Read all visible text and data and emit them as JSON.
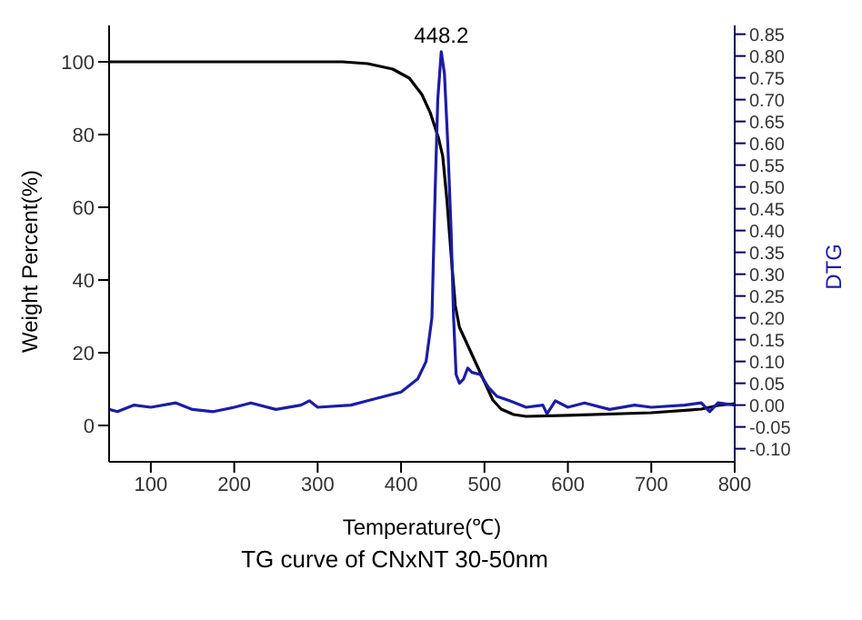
{
  "chart_data": {
    "type": "line",
    "title": "TG curve of CNxNT 30-50nm",
    "xlabel": "Temperature(℃)",
    "ylabel": "Weight Percent(%)",
    "y2label": "DTG",
    "xlim": [
      50,
      800
    ],
    "xticks": [
      100,
      200,
      300,
      400,
      500,
      600,
      700,
      800
    ],
    "ylim": [
      -10,
      110
    ],
    "yticks": [
      0,
      20,
      40,
      60,
      80,
      100
    ],
    "y2lim": [
      -0.13,
      0.87
    ],
    "y2ticks": [
      {
        "value": -0.1,
        "label": "-0.10"
      },
      {
        "value": -0.05,
        "label": "-0.05"
      },
      {
        "value": 0,
        "label": "0.00"
      },
      {
        "value": 0.05,
        "label": "0.05"
      },
      {
        "value": 0.1,
        "label": "0.10"
      },
      {
        "value": 0.15,
        "label": "0.15"
      },
      {
        "value": 0.2,
        "label": "0.20"
      },
      {
        "value": 0.25,
        "label": "0.25"
      },
      {
        "value": 0.3,
        "label": "0.30"
      },
      {
        "value": 0.35,
        "label": "0.35"
      },
      {
        "value": 0.4,
        "label": "0.40"
      },
      {
        "value": 0.45,
        "label": "0.45"
      },
      {
        "value": 0.5,
        "label": "0.50"
      },
      {
        "value": 0.55,
        "label": "0.55"
      },
      {
        "value": 0.6,
        "label": "0.60"
      },
      {
        "value": 0.65,
        "label": "0.65"
      },
      {
        "value": 0.7,
        "label": "0.70"
      },
      {
        "value": 0.75,
        "label": "0.75"
      },
      {
        "value": 0.8,
        "label": "0.80"
      },
      {
        "value": 0.85,
        "label": "0.85"
      }
    ],
    "grid": false,
    "legend": false,
    "marker": "none",
    "line_style": "solid",
    "annotations": [
      "448.2"
    ],
    "series": [
      {
        "color": "#000000",
        "x": [
          50,
          330,
          360,
          390,
          410,
          425,
          435,
          445,
          450,
          455,
          460,
          465,
          470,
          480,
          490,
          500,
          510,
          520,
          535,
          550,
          600,
          700,
          760,
          780,
          800
        ],
        "values": [
          100,
          100,
          99.5,
          98,
          95.5,
          91,
          86,
          79,
          74,
          62,
          47,
          33,
          27,
          22,
          17,
          12,
          7,
          4.5,
          3,
          2.5,
          2.8,
          3.5,
          4.5,
          5.5,
          6
        ]
      },
      {
        "color": "#1c1ca6",
        "axis": "y2",
        "x": [
          50,
          60,
          80,
          100,
          130,
          150,
          175,
          200,
          220,
          250,
          280,
          290,
          300,
          340,
          360,
          380,
          400,
          420,
          430,
          437,
          441,
          444,
          448.2,
          452,
          456,
          460,
          463,
          466,
          470,
          475,
          480,
          485,
          495,
          505,
          515,
          530,
          550,
          570,
          575,
          585,
          600,
          620,
          650,
          680,
          700,
          740,
          760,
          770,
          780,
          800
        ],
        "values": [
          -0.01,
          -0.015,
          0,
          -0.005,
          0.005,
          -0.01,
          -0.015,
          -0.005,
          0.005,
          -0.01,
          0,
          0.01,
          -0.005,
          0,
          0.01,
          0.02,
          0.03,
          0.06,
          0.1,
          0.2,
          0.5,
          0.7,
          0.81,
          0.76,
          0.6,
          0.4,
          0.2,
          0.07,
          0.05,
          0.06,
          0.085,
          0.075,
          0.07,
          0.04,
          0.02,
          0.01,
          -0.005,
          0,
          -0.02,
          0.01,
          -0.005,
          0.005,
          -0.01,
          0,
          -0.005,
          0,
          0.005,
          -0.015,
          0.005,
          0
        ]
      }
    ]
  }
}
